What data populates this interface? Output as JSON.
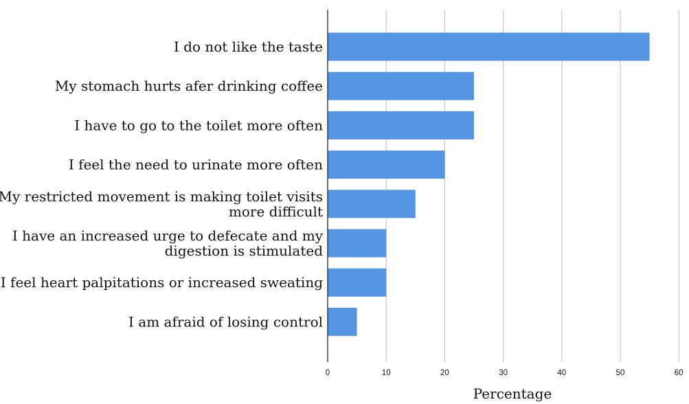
{
  "chart_data": {
    "type": "bar",
    "orientation": "horizontal",
    "categories": [
      [
        "I do not like the taste"
      ],
      [
        "My stomach hurts afer drinking coffee"
      ],
      [
        "I have to go to the toilet more often"
      ],
      [
        "I feel the need to urinate more often"
      ],
      [
        "My restricted movement is making toilet visits",
        "more difficult"
      ],
      [
        "I have an increased urge to defecate and my",
        "digestion is stimulated"
      ],
      [
        "I feel heart palpitations or increased sweating"
      ],
      [
        "I am afraid of losing control"
      ]
    ],
    "values": [
      55,
      25,
      25,
      20,
      15,
      10,
      10,
      5
    ],
    "xlabel": "Percentage",
    "ylabel": "",
    "xlim": [
      0,
      60
    ],
    "xticks": [
      0,
      10,
      20,
      30,
      40,
      50,
      60
    ],
    "grid": true,
    "bar_color": "#5595e6",
    "grid_color": "#c8c8c8"
  }
}
